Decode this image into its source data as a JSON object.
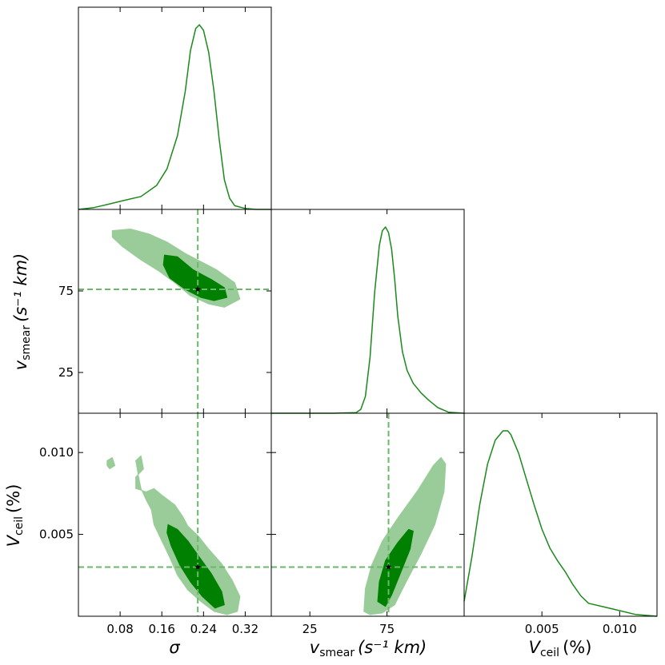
{
  "colors": {
    "line": "#1a8a1a",
    "fill_outer": "#99cc99",
    "fill_inner": "#008000",
    "truth_line": "#6ab96a",
    "marker": "#000000",
    "frame": "#000000"
  },
  "labels": {
    "sigma_axis": "σ",
    "vsmear_axis_main": "v",
    "vsmear_axis_sub": "smear",
    "vsmear_axis_units": "(s⁻¹ km)",
    "vceil_axis_main": "V",
    "vceil_axis_sub": "ceil",
    "vceil_axis_units": "(%)"
  },
  "chart_data": {
    "type": "corner",
    "parameters": [
      {
        "name": "σ",
        "range": [
          0.0,
          0.37
        ],
        "ticks": [
          0.08,
          0.16,
          0.24,
          0.32
        ],
        "tick_labels": [
          "0.08",
          "0.16",
          "0.24",
          "0.32"
        ],
        "truth": 0.229
      },
      {
        "name": "vsmear (s⁻¹ km)",
        "range": [
          0.0,
          125.0
        ],
        "ticks": [
          25,
          75
        ],
        "tick_labels": [
          "25",
          "75"
        ],
        "truth": 76.0
      },
      {
        "name": "Vceil (%)",
        "range": [
          0.0,
          0.0124
        ],
        "ticks": [
          0.005,
          0.01
        ],
        "tick_labels": [
          "0.005",
          "0.010"
        ],
        "truth": 0.003
      }
    ],
    "marginals": [
      {
        "parameter": "σ",
        "x": [
          0.0,
          0.03,
          0.06,
          0.09,
          0.12,
          0.15,
          0.17,
          0.19,
          0.205,
          0.215,
          0.225,
          0.232,
          0.24,
          0.25,
          0.26,
          0.27,
          0.28,
          0.29,
          0.3,
          0.32,
          0.34,
          0.37
        ],
        "density": [
          0.0,
          0.01,
          0.03,
          0.05,
          0.07,
          0.13,
          0.22,
          0.4,
          0.64,
          0.86,
          0.98,
          1.0,
          0.97,
          0.85,
          0.64,
          0.38,
          0.16,
          0.06,
          0.02,
          0.005,
          0.0,
          0.0
        ]
      },
      {
        "parameter": "vsmear (s⁻¹ km)",
        "x": [
          0,
          40,
          55,
          58,
          61,
          64,
          67,
          70,
          72,
          74,
          76,
          78,
          80,
          82,
          85,
          88,
          92,
          97,
          102,
          108,
          115,
          125
        ],
        "density": [
          0.0,
          0.0,
          0.003,
          0.02,
          0.09,
          0.3,
          0.65,
          0.9,
          0.98,
          1.0,
          0.97,
          0.88,
          0.72,
          0.52,
          0.33,
          0.23,
          0.16,
          0.11,
          0.07,
          0.03,
          0.005,
          0.0
        ]
      },
      {
        "parameter": "Vceil (%)",
        "x": [
          0.0,
          0.0005,
          0.001,
          0.0015,
          0.002,
          0.0025,
          0.0028,
          0.003,
          0.0035,
          0.004,
          0.0045,
          0.005,
          0.0055,
          0.006,
          0.0065,
          0.007,
          0.0075,
          0.008,
          0.009,
          0.01,
          0.011,
          0.0124
        ],
        "density": [
          0.08,
          0.32,
          0.6,
          0.82,
          0.95,
          1.0,
          1.0,
          0.98,
          0.88,
          0.74,
          0.6,
          0.47,
          0.37,
          0.3,
          0.24,
          0.17,
          0.11,
          0.07,
          0.05,
          0.03,
          0.01,
          0.0
        ]
      }
    ],
    "joint": [
      {
        "x_parameter": "σ",
        "y_parameter": "vsmear (s⁻¹ km)",
        "contours": [
          {
            "level": "outer",
            "points": [
              [
                0.065,
                112
              ],
              [
                0.1,
                113
              ],
              [
                0.135,
                110
              ],
              [
                0.17,
                105
              ],
              [
                0.205,
                98
              ],
              [
                0.235,
                93
              ],
              [
                0.265,
                88
              ],
              [
                0.3,
                80
              ],
              [
                0.31,
                70
              ],
              [
                0.28,
                65
              ],
              [
                0.25,
                67
              ],
              [
                0.215,
                72
              ],
              [
                0.185,
                80
              ],
              [
                0.155,
                87
              ],
              [
                0.12,
                94
              ],
              [
                0.085,
                102
              ],
              [
                0.065,
                108
              ]
            ]
          },
          {
            "level": "inner",
            "points": [
              [
                0.165,
                97
              ],
              [
                0.19,
                96
              ],
              [
                0.22,
                88
              ],
              [
                0.255,
                82
              ],
              [
                0.28,
                77
              ],
              [
                0.285,
                71
              ],
              [
                0.26,
                69
              ],
              [
                0.235,
                71
              ],
              [
                0.205,
                76
              ],
              [
                0.175,
                83
              ],
              [
                0.163,
                91
              ]
            ]
          }
        ]
      },
      {
        "x_parameter": "σ",
        "y_parameter": "Vceil (%)",
        "contours": [
          {
            "level": "outer",
            "points": [
              [
                0.11,
                0.0095
              ],
              [
                0.12,
                0.0098
              ],
              [
                0.125,
                0.009
              ],
              [
                0.11,
                0.0085
              ],
              [
                0.11,
                0.0078
              ],
              [
                0.13,
                0.0076
              ],
              [
                0.145,
                0.0078
              ],
              [
                0.16,
                0.0074
              ],
              [
                0.185,
                0.0068
              ],
              [
                0.2,
                0.0061
              ],
              [
                0.21,
                0.0055
              ],
              [
                0.23,
                0.0049
              ],
              [
                0.25,
                0.0041
              ],
              [
                0.275,
                0.0032
              ],
              [
                0.295,
                0.0022
              ],
              [
                0.31,
                0.0012
              ],
              [
                0.305,
                0.0003
              ],
              [
                0.285,
                0.0001
              ],
              [
                0.26,
                0.0003
              ],
              [
                0.235,
                0.0009
              ],
              [
                0.21,
                0.0016
              ],
              [
                0.19,
                0.0025
              ],
              [
                0.175,
                0.0036
              ],
              [
                0.16,
                0.0046
              ],
              [
                0.145,
                0.0056
              ],
              [
                0.14,
                0.0065
              ],
              [
                0.13,
                0.0071
              ],
              [
                0.12,
                0.0078
              ],
              [
                0.115,
                0.0086
              ]
            ]
          },
          {
            "level": "outer",
            "points": [
              [
                0.055,
                0.0095
              ],
              [
                0.065,
                0.0097
              ],
              [
                0.07,
                0.0092
              ],
              [
                0.06,
                0.009
              ],
              [
                0.055,
                0.0092
              ]
            ]
          },
          {
            "level": "inner",
            "points": [
              [
                0.172,
                0.0056
              ],
              [
                0.19,
                0.0053
              ],
              [
                0.21,
                0.0046
              ],
              [
                0.23,
                0.0037
              ],
              [
                0.255,
                0.0026
              ],
              [
                0.275,
                0.0015
              ],
              [
                0.28,
                0.0007
              ],
              [
                0.262,
                0.0005
              ],
              [
                0.238,
                0.0012
              ],
              [
                0.215,
                0.0021
              ],
              [
                0.195,
                0.0031
              ],
              [
                0.178,
                0.0043
              ],
              [
                0.17,
                0.0051
              ]
            ]
          }
        ]
      },
      {
        "x_parameter": "vsmear (s⁻¹ km)",
        "y_parameter": "Vceil (%)",
        "contours": [
          {
            "level": "outer",
            "points": [
              [
                60,
                0.0003
              ],
              [
                61,
                0.0017
              ],
              [
                65,
                0.0031
              ],
              [
                72,
                0.0046
              ],
              [
                82,
                0.006
              ],
              [
                95,
                0.0077
              ],
              [
                105,
                0.0092
              ],
              [
                110,
                0.0097
              ],
              [
                113,
                0.0093
              ],
              [
                112,
                0.0076
              ],
              [
                106,
                0.0056
              ],
              [
                97,
                0.0038
              ],
              [
                88,
                0.0022
              ],
              [
                80,
                0.0007
              ],
              [
                72,
                0.0002
              ],
              [
                64,
                0.0001
              ]
            ]
          },
          {
            "level": "inner",
            "points": [
              [
                69,
                0.0009
              ],
              [
                70,
                0.0021
              ],
              [
                74,
                0.0034
              ],
              [
                82,
                0.0045
              ],
              [
                89,
                0.0053
              ],
              [
                92,
                0.0052
              ],
              [
                90,
                0.0041
              ],
              [
                84,
                0.0027
              ],
              [
                78,
                0.0013
              ],
              [
                74,
                0.0006
              ]
            ]
          }
        ]
      }
    ]
  }
}
